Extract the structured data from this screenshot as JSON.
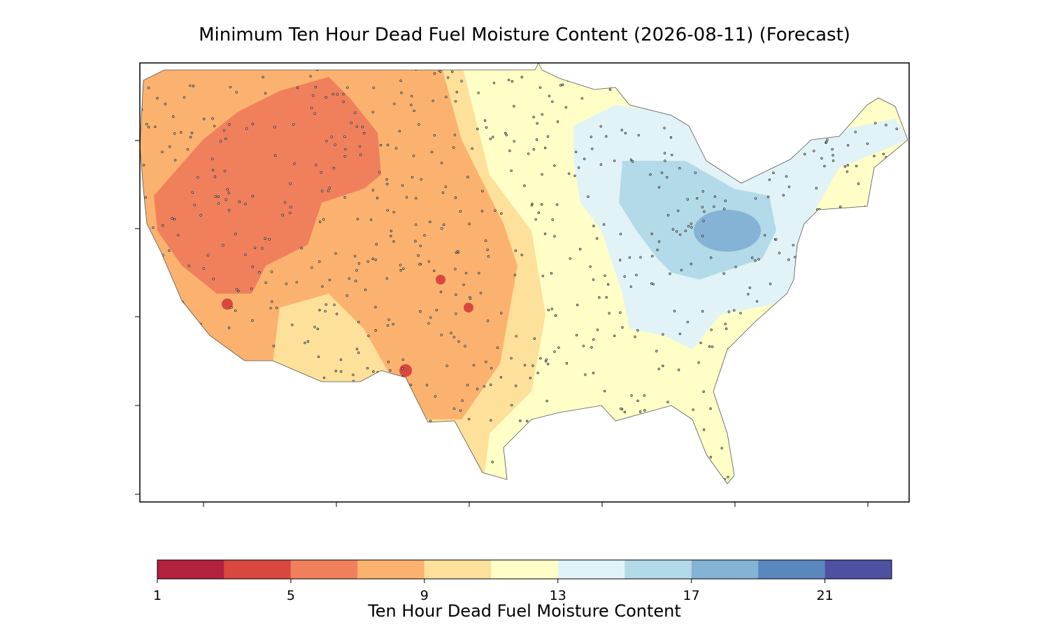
{
  "title": "Minimum Ten Hour Dead Fuel Moisture Content (2026-08-11) (Forecast)",
  "colorbar": {
    "label": "Ten Hour Dead Fuel Moisture Content",
    "levels": [
      1,
      3,
      5,
      7,
      9,
      11,
      13,
      15,
      17,
      19,
      21,
      23
    ],
    "colors": [
      "#b3213f",
      "#d9473f",
      "#f07f5c",
      "#fbb26e",
      "#fde09a",
      "#fefec6",
      "#e2f3f7",
      "#b3dae9",
      "#84b3d5",
      "#5b87bf",
      "#4e50a2"
    ],
    "ticks": [
      1,
      5,
      9,
      13,
      17,
      21
    ]
  }
}
